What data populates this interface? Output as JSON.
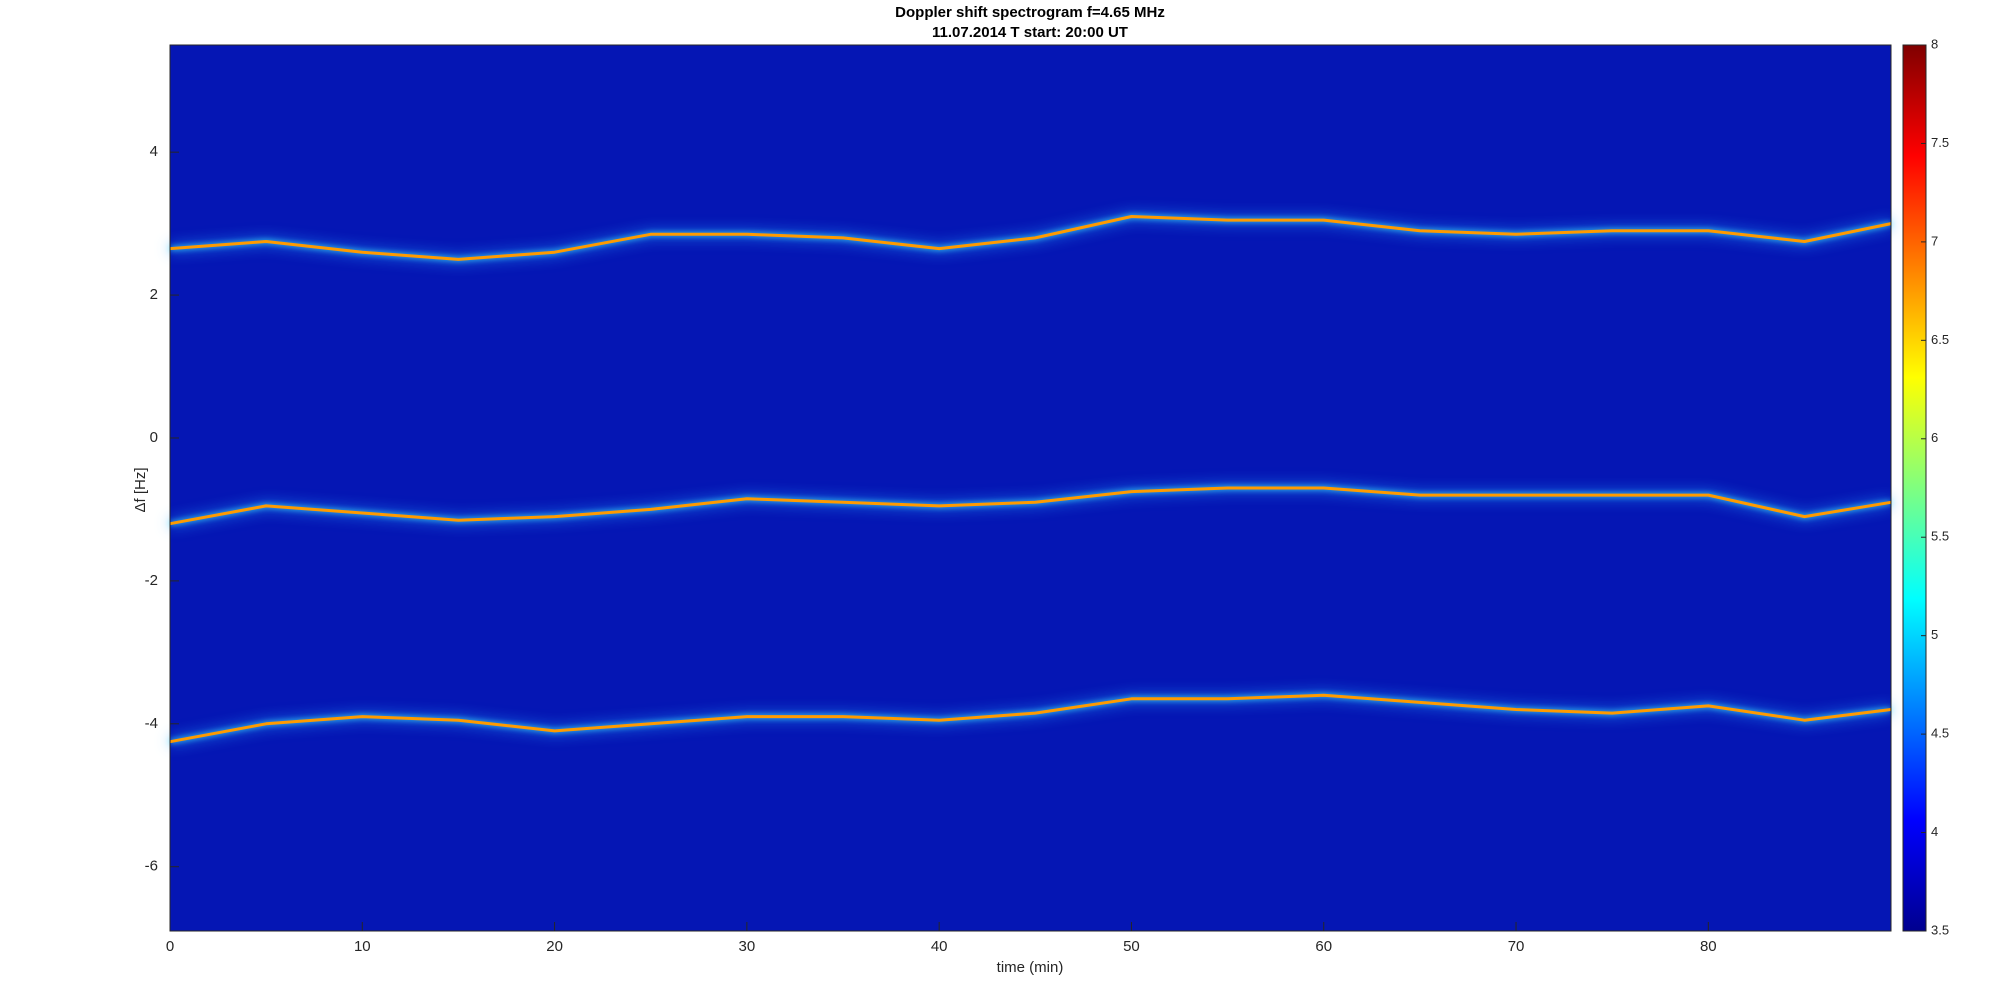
{
  "chart_data": {
    "type": "spectrogram",
    "title": "Doppler shift spectrogram f=4.65 MHz",
    "subtitle": "11.07.2014   T start: 20:00 UT",
    "xlabel": "time (min)",
    "ylabel": "Δf [Hz]",
    "xlim": [
      0,
      89.5
    ],
    "xticks": [
      0,
      10,
      20,
      30,
      40,
      50,
      60,
      70,
      80
    ],
    "ylim": [
      -6.9,
      5.5
    ],
    "yticks": [
      -6,
      -4,
      -2,
      0,
      2,
      4
    ],
    "clim": [
      3.5,
      8
    ],
    "cticks": [
      3.5,
      4,
      4.5,
      5,
      5.5,
      6,
      6.5,
      7,
      7.5,
      8
    ],
    "colormap": "jet",
    "background": "#0516b4",
    "x": [
      0,
      5,
      10,
      15,
      20,
      25,
      30,
      35,
      40,
      45,
      50,
      55,
      60,
      65,
      70,
      75,
      80,
      85,
      89.5
    ],
    "series": [
      {
        "color": "#ff9a00",
        "values": [
          2.65,
          2.75,
          2.6,
          2.5,
          2.6,
          2.85,
          2.85,
          2.8,
          2.65,
          2.8,
          3.1,
          3.05,
          3.05,
          2.9,
          2.85,
          2.9,
          2.9,
          2.75,
          3.0
        ]
      },
      {
        "color": "#ff9a00",
        "values": [
          -1.2,
          -0.95,
          -1.05,
          -1.15,
          -1.1,
          -1.0,
          -0.85,
          -0.9,
          -0.95,
          -0.9,
          -0.75,
          -0.7,
          -0.7,
          -0.8,
          -0.8,
          -0.8,
          -0.8,
          -1.1,
          -0.9
        ]
      },
      {
        "color": "#ff9a00",
        "values": [
          -4.25,
          -4.0,
          -3.9,
          -3.95,
          -4.1,
          -4.0,
          -3.9,
          -3.9,
          -3.95,
          -3.85,
          -3.65,
          -3.65,
          -3.6,
          -3.7,
          -3.8,
          -3.85,
          -3.75,
          -3.95,
          -3.8
        ]
      }
    ]
  }
}
